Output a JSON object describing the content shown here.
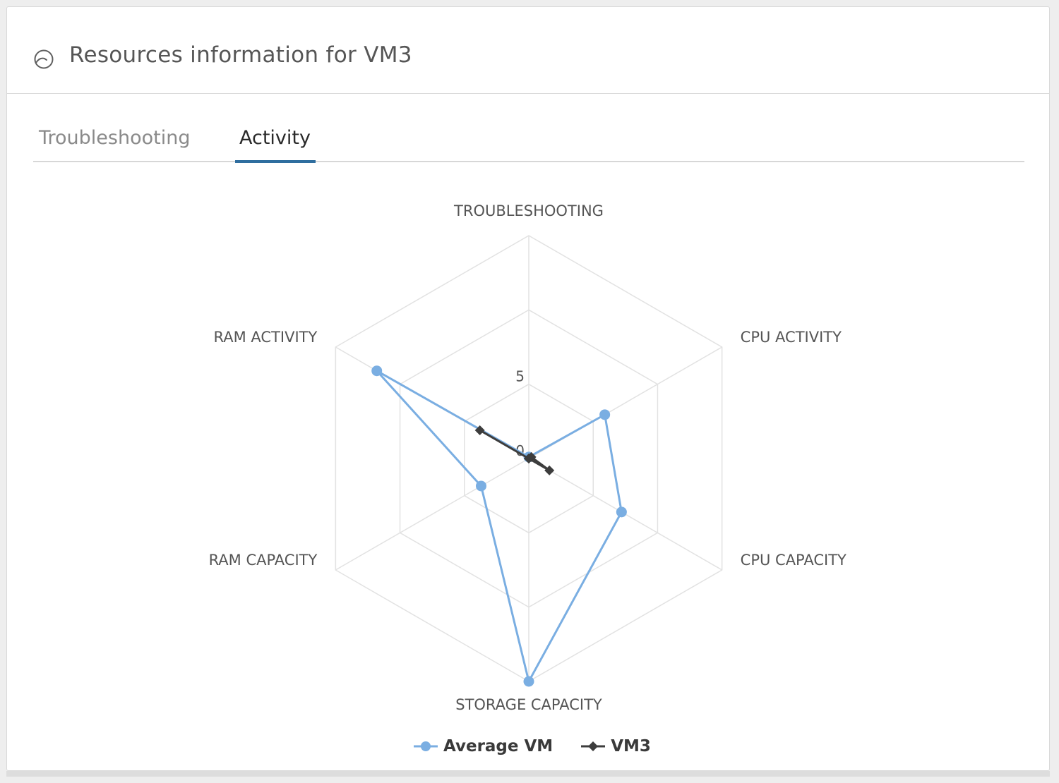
{
  "panel": {
    "title": "Resources information for VM3",
    "icon": "gauge-icon"
  },
  "tabs": [
    {
      "label": "Troubleshooting",
      "active": false
    },
    {
      "label": "Activity",
      "active": true
    }
  ],
  "colors": {
    "accent": "#2f6e9f",
    "average_vm": "#7aaee2",
    "vm3": "#3d3d3d"
  },
  "chart_data": {
    "type": "radar",
    "categories": [
      "TROUBLESHOOTING",
      "CPU ACTIVITY",
      "CPU CAPACITY",
      "STORAGE CAPACITY",
      "RAM CAPACITY",
      "RAM ACTIVITY"
    ],
    "tick_labels": [
      "0",
      "5"
    ],
    "range": [
      0,
      15
    ],
    "gridlines": [
      0,
      5,
      10,
      15
    ],
    "grid": true,
    "legend_position": "bottom",
    "series": [
      {
        "name": "Average VM",
        "marker": "circle",
        "values": [
          0.1,
          5.9,
          7.2,
          15.0,
          3.7,
          11.8
        ]
      },
      {
        "name": "VM3",
        "marker": "diamond",
        "values": [
          0,
          0.2,
          1.6,
          0,
          0,
          3.8
        ]
      }
    ]
  }
}
